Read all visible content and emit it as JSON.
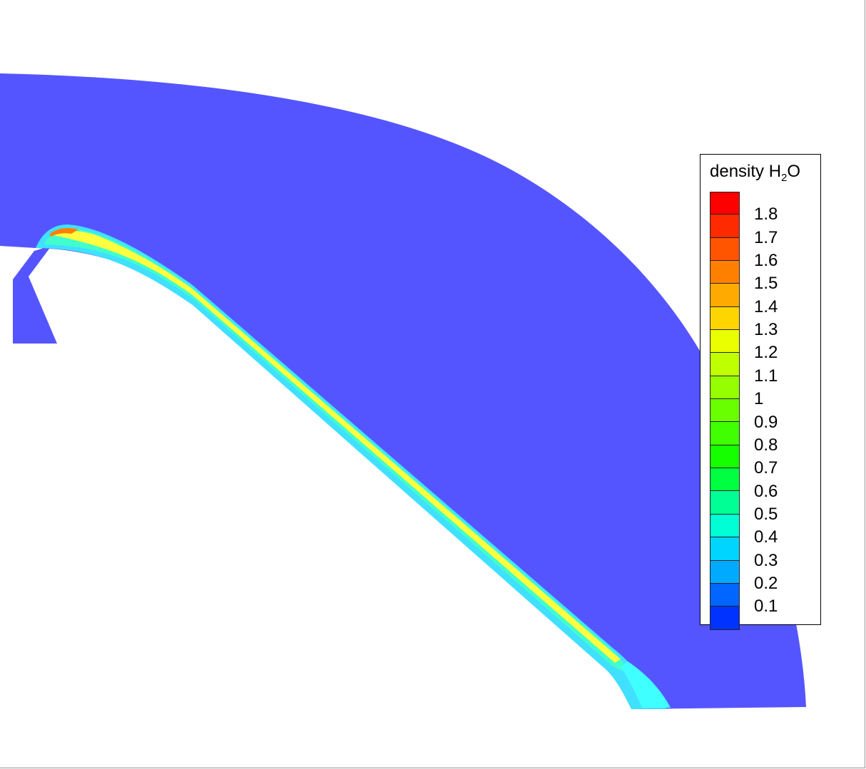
{
  "chart_data": {
    "type": "heatmap",
    "title": "",
    "legend": {
      "title_main": "density H",
      "title_sub": "2",
      "title_tail": "O",
      "placement": "right",
      "levels": [
        {
          "value": "1.8",
          "color": "#ff2a00"
        },
        {
          "value": "1.7",
          "color": "#ff5500"
        },
        {
          "value": "1.6",
          "color": "#ff8000"
        },
        {
          "value": "1.5",
          "color": "#ffaa00"
        },
        {
          "value": "1.4",
          "color": "#ffd500"
        },
        {
          "value": "1.3",
          "color": "#eaff00"
        },
        {
          "value": "1.2",
          "color": "#bfff00"
        },
        {
          "value": "1.1",
          "color": "#95ff00"
        },
        {
          "value": "1",
          "color": "#6aff00"
        },
        {
          "value": "0.9",
          "color": "#40ff00"
        },
        {
          "value": "0.8",
          "color": "#15ff00"
        },
        {
          "value": "0.7",
          "color": "#00ff40"
        },
        {
          "value": "0.6",
          "color": "#00ff95"
        },
        {
          "value": "0.5",
          "color": "#00ffd5"
        },
        {
          "value": "0.4",
          "color": "#00d5ff"
        },
        {
          "value": "0.3",
          "color": "#00aaff"
        },
        {
          "value": "0.2",
          "color": "#0066ff"
        },
        {
          "value": "0.1",
          "color": "#0033ff"
        }
      ],
      "top_color": "#ff0000",
      "bottom_color": "#0000ff"
    },
    "field_colors": {
      "background_fluid": "#5555ff",
      "jet_core": "#ffff40",
      "jet_edge": "#40ffcc",
      "jet_outer": "#40e0ff"
    },
    "grid": false
  }
}
